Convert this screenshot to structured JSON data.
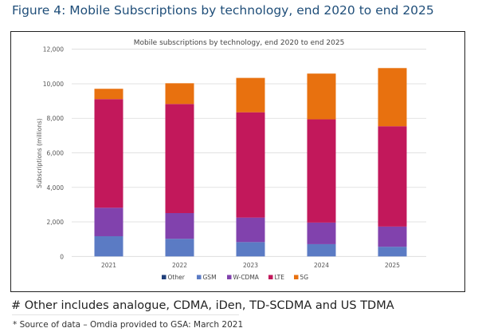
{
  "figure": {
    "title": "Figure 4: Mobile Subscriptions by technology, end 2020 to end 2025"
  },
  "footnote": "# Other includes analogue, CDMA, iDen, TD-SCDMA and US TDMA",
  "source": "* Source of data – Omdia provided to GSA: March 2021",
  "chart_data": {
    "type": "bar",
    "stacked": true,
    "title": "Mobile subscriptions by technology, end 2020 to end 2025",
    "xlabel": "",
    "ylabel": "Subscriptions (millions)",
    "ylim": [
      0,
      12000
    ],
    "yticks": [
      0,
      2000,
      4000,
      6000,
      8000,
      10000,
      12000
    ],
    "ytick_labels": [
      "0",
      "2,000",
      "4,000",
      "6,000",
      "8,000",
      "10,000",
      "12,000"
    ],
    "grid": true,
    "legend_position": "bottom",
    "categories": [
      "2021",
      "2022",
      "2023",
      "2024",
      "2025"
    ],
    "series": [
      {
        "name": "Other",
        "color": "#1f3f7a",
        "values": [
          0,
          0,
          0,
          0,
          0
        ]
      },
      {
        "name": "GSM",
        "color": "#5b7bc4",
        "values": [
          1170,
          1020,
          830,
          710,
          560
        ]
      },
      {
        "name": "W-CDMA",
        "color": "#8142ad",
        "values": [
          1650,
          1490,
          1420,
          1250,
          1170
        ]
      },
      {
        "name": "LTE",
        "color": "#c2185b",
        "values": [
          6290,
          6320,
          6100,
          5980,
          5810
        ]
      },
      {
        "name": "5G",
        "color": "#e8710f",
        "values": [
          600,
          1200,
          1990,
          2650,
          3370
        ]
      }
    ]
  }
}
